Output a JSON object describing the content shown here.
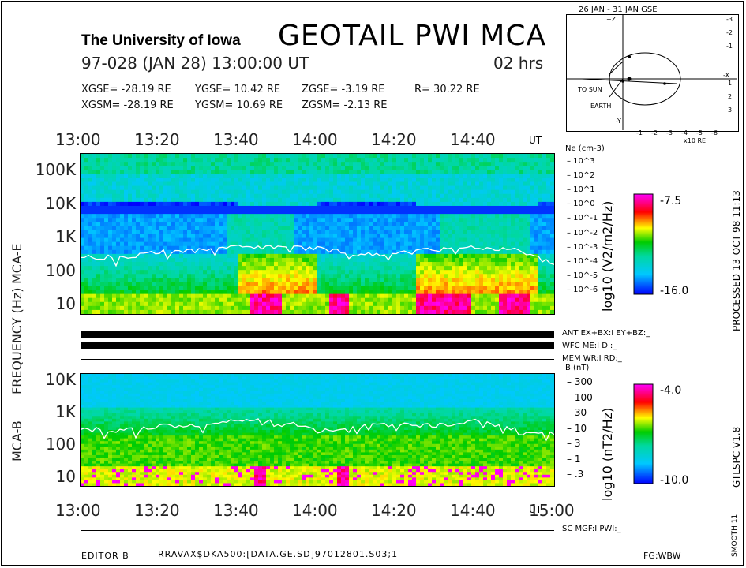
{
  "header": {
    "institution": "The University of Iowa",
    "title": "GEOTAIL PWI MCA",
    "date_line": "97-028 (JAN 28) 13:00:00 UT",
    "duration": "02 hrs",
    "coords_gse": [
      "XGSE= -28.19 RE",
      "YGSE= 10.42 RE",
      "ZGSE= -3.19 RE",
      "R= 30.22 RE"
    ],
    "coords_gsm": [
      "XGSM= -28.19 RE",
      "YGSM= 10.69 RE",
      "ZGSM= -2.13 RE"
    ]
  },
  "orbit_inset": {
    "title": "26 JAN - 31 JAN GSE",
    "labels": {
      "to_sun": "TO SUN",
      "earth": "EARTH",
      "x_axis_unit": "x10 RE",
      "x_axis": "-X",
      "y_axis": "-Y",
      "z_axis": "+Z"
    },
    "x_ticks": [
      "-1",
      "-2",
      "-3",
      "-4",
      "-5",
      "-6"
    ],
    "y_ticks_up": [
      "-1",
      "-2",
      "-3"
    ],
    "y_ticks_down": [
      "1",
      "2",
      "3"
    ]
  },
  "time_axis": {
    "top_ticks": [
      "13:00",
      "13:20",
      "13:40",
      "14:00",
      "14:20",
      "14:40"
    ],
    "bottom_ticks": [
      "13:00",
      "13:20",
      "13:40",
      "14:00",
      "14:20",
      "14:40",
      "15:00"
    ],
    "unit": "UT"
  },
  "panels": {
    "mca_e": {
      "label": "MCA-E",
      "freq_ticks": [
        "100K",
        "10K",
        "1K",
        "100",
        "10"
      ],
      "right_title": "Ne (cm-3)",
      "right_ticks": [
        "10^3",
        "10^2",
        "10^1",
        "10^0",
        "10^-1",
        "10^-2",
        "10^-3",
        "10^-4",
        "10^-5",
        "10^-6"
      ],
      "colorbar": {
        "unit": "log10 (V2/m2/Hz)",
        "max": "-7.5",
        "min": "-16.0"
      }
    },
    "mca_b": {
      "label": "MCA-B",
      "freq_ticks": [
        "10K",
        "1K",
        "100",
        "10"
      ],
      "right_title": "B (nT)",
      "right_ticks": [
        "300",
        "100",
        "30",
        "10",
        "3",
        "1",
        ".3"
      ],
      "colorbar": {
        "unit": "log10 (nT2/Hz)",
        "max": "-4.0",
        "min": "-10.0"
      }
    }
  },
  "frequency_label": "FREQUENCY (Hz)",
  "status": {
    "ant": "ANT EX+BX:I EY+BZ:_",
    "wfc": "WFC ME:I DI:_",
    "mem": "MEM WR:I RD:_",
    "sc": "SC MGF:I PWI:_"
  },
  "side_labels": {
    "processed": "PROCESSED 13-OCT-98 11:13",
    "version": "GTLSPC V1.8",
    "smooth": "SMOOTH 11"
  },
  "footer": {
    "editor": "EDITOR B",
    "file": "RRAVAX$DKA500:[DATA.GE.SD]97012801.S03;1",
    "fg": "FG:WBW"
  },
  "colors": {
    "accent_magenta": "#ff00ff",
    "accent_red": "#ff0000",
    "accent_yellow": "#ffff00",
    "accent_green": "#00cc00",
    "accent_cyan": "#00e0ff",
    "accent_blue": "#0000ff"
  },
  "chart_data": {
    "type": "heatmap",
    "x_range": [
      "13:00",
      "15:00"
    ],
    "panels": [
      {
        "name": "MCA-E",
        "y_scale": "log",
        "ylim": [
          5,
          300000
        ],
        "colorscale_range": [
          -16.0,
          -7.5
        ],
        "plasma_frequency_line_hz": {
          "x": [
            "13:00",
            "13:10",
            "13:20",
            "13:30",
            "13:40",
            "13:50",
            "14:00",
            "14:10",
            "14:20",
            "14:30",
            "14:40",
            "14:50",
            "15:00"
          ],
          "y": [
            250,
            240,
            350,
            400,
            500,
            480,
            450,
            300,
            320,
            420,
            500,
            420,
            150
          ]
        }
      },
      {
        "name": "MCA-B",
        "y_scale": "log",
        "ylim": [
          5,
          15000
        ],
        "colorscale_range": [
          -10.0,
          -4.0
        ],
        "cyclotron_line_hz": {
          "x": [
            "13:00",
            "13:10",
            "13:20",
            "13:30",
            "13:40",
            "13:50",
            "14:00",
            "14:10",
            "14:20",
            "14:30",
            "14:40",
            "14:50",
            "15:00"
          ],
          "y": [
            300,
            250,
            350,
            400,
            600,
            550,
            250,
            350,
            400,
            380,
            500,
            300,
            200
          ]
        }
      }
    ]
  }
}
